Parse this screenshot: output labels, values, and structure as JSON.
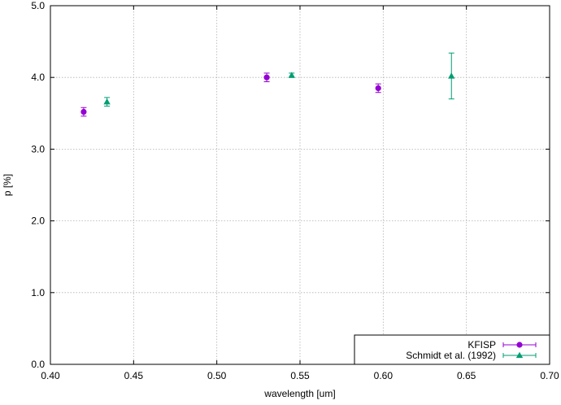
{
  "chart_data": {
    "type": "scatter",
    "xlabel": "wavelength [um]",
    "ylabel": "p [%]",
    "xlim": [
      0.4,
      0.7
    ],
    "ylim": [
      0.0,
      5.0
    ],
    "x_ticks": [
      "0.40",
      "0.45",
      "0.50",
      "0.55",
      "0.60",
      "0.65",
      "0.70"
    ],
    "y_ticks": [
      "0.0",
      "1.0",
      "2.0",
      "3.0",
      "4.0",
      "5.0"
    ],
    "grid": true,
    "legend_position": "bottom-right",
    "series": [
      {
        "name": "KFISP",
        "marker": "circle",
        "color": "#9400d3",
        "points": [
          {
            "x": 0.42,
            "y": 3.52,
            "yerr": 0.06
          },
          {
            "x": 0.53,
            "y": 4.0,
            "yerr": 0.06
          },
          {
            "x": 0.597,
            "y": 3.85,
            "yerr": 0.06
          }
        ]
      },
      {
        "name": "Schmidt et al. (1992)",
        "marker": "triangle",
        "color": "#009e73",
        "points": [
          {
            "x": 0.434,
            "y": 3.66,
            "yerr": 0.06
          },
          {
            "x": 0.545,
            "y": 4.03,
            "yerr": 0.03
          },
          {
            "x": 0.641,
            "y": 4.02,
            "yerr": 0.32
          }
        ]
      }
    ]
  }
}
